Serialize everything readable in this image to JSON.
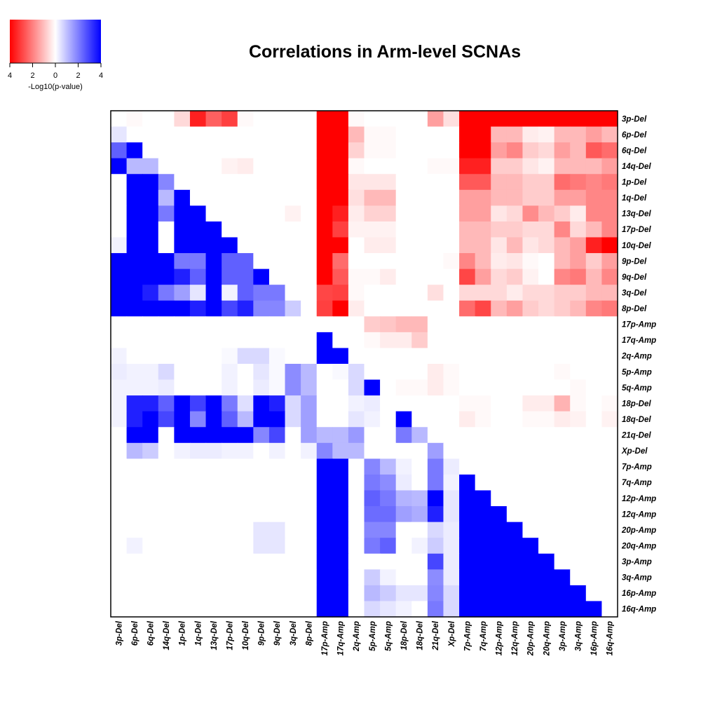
{
  "chart_data": {
    "type": "heatmap",
    "title": "Correlations in Arm-level SCNAs",
    "legend": {
      "label": "-Log10(p-value)",
      "tick_labels": [
        "4",
        "2",
        "0",
        "2",
        "4"
      ],
      "range": [
        -4,
        4
      ],
      "low_color": "#ff0000",
      "mid_color": "#ffffff",
      "high_color": "#0000ff",
      "placement": "top-left"
    },
    "note": "Values in -log10(p) units; negative = red (left side of legend), positive = blue (right side). Upper triangle red, lower triangle blue.",
    "labels": [
      "3p-Del",
      "6p-Del",
      "6q-Del",
      "14q-Del",
      "1p-Del",
      "1q-Del",
      "13q-Del",
      "17p-Del",
      "10q-Del",
      "9p-Del",
      "9q-Del",
      "3q-Del",
      "8p-Del",
      "17p-Amp",
      "17q-Amp",
      "2q-Amp",
      "5p-Amp",
      "5q-Amp",
      "18p-Del",
      "18q-Del",
      "21q-Del",
      "Xp-Del",
      "7p-Amp",
      "7q-Amp",
      "12p-Amp",
      "12q-Amp",
      "20p-Amp",
      "20q-Amp",
      "3p-Amp",
      "3q-Amp",
      "16p-Amp",
      "16q-Amp"
    ],
    "matrix": [
      [
        0,
        -0.1,
        0,
        0,
        -0.6,
        -3.5,
        -2.5,
        -3,
        -0.1,
        0,
        0,
        0,
        0,
        -4,
        -4,
        -0.1,
        0,
        0,
        0,
        0,
        -1.5,
        -0.5,
        -4,
        -4,
        -4,
        -4,
        -4,
        -4,
        -4,
        -4,
        -4,
        -4
      ],
      [
        0.4,
        0,
        0,
        0,
        0,
        0,
        0,
        0,
        0,
        0,
        0,
        0,
        0,
        -4,
        -4,
        -1.1,
        -0.1,
        -0.1,
        0,
        0,
        0,
        0,
        -4,
        -4,
        -1.1,
        -1.1,
        -0.3,
        -0.2,
        -1.1,
        -1.1,
        -1.5,
        -1.1
      ],
      [
        2.5,
        4,
        0,
        0,
        0,
        0,
        0,
        0,
        0,
        0,
        0,
        0,
        0,
        -4,
        -4,
        -0.7,
        -0.1,
        -0.1,
        0,
        0,
        0,
        0,
        -4,
        -4,
        -1.5,
        -1.9,
        -0.8,
        -0.6,
        -1.5,
        -1.1,
        -2.6,
        -2.3
      ],
      [
        4,
        1.1,
        1.1,
        0,
        0,
        0,
        0,
        -0.2,
        -0.3,
        0,
        0,
        0,
        0,
        -4,
        -4,
        -0.1,
        0,
        0,
        0,
        0,
        -0.1,
        -0.1,
        -3.5,
        -3.5,
        -0.8,
        -0.8,
        -0.4,
        -0.2,
        -1.1,
        -1.1,
        -1.1,
        -1.5
      ],
      [
        0,
        4,
        4,
        1.9,
        0,
        0,
        0,
        0,
        0,
        0,
        0,
        0,
        0,
        -4,
        -4,
        -0.4,
        -0.4,
        -0.4,
        0,
        0,
        0,
        0,
        -2.6,
        -2.6,
        -1.1,
        -1.1,
        -0.8,
        -0.8,
        -2.3,
        -2.1,
        -1.9,
        -2.1
      ],
      [
        0,
        4,
        4,
        1.1,
        4,
        0,
        0,
        0,
        0,
        0,
        0,
        0,
        0,
        -4,
        -4,
        -0.5,
        -1.1,
        -1.1,
        0,
        0,
        0,
        0,
        -1.5,
        -1.5,
        -1.1,
        -1.1,
        -0.8,
        -0.8,
        -1.5,
        -1.5,
        -1.9,
        -1.9
      ],
      [
        0,
        4,
        4,
        2.1,
        4,
        4,
        0,
        0,
        0,
        0,
        0,
        -0.2,
        0,
        -4,
        -3.5,
        -0.3,
        -0.7,
        -0.7,
        0,
        0,
        0,
        0,
        -1.5,
        -1.5,
        -0.4,
        -0.6,
        -1.8,
        -1.1,
        -0.8,
        -0.3,
        -1.9,
        -1.9
      ],
      [
        0,
        4,
        4,
        0,
        4,
        4,
        4,
        0,
        0,
        0,
        0,
        0,
        0,
        -4,
        -3,
        -0.2,
        -0.2,
        -0.2,
        0,
        0,
        0,
        0,
        -1.1,
        -1.1,
        -0.8,
        -0.8,
        -0.6,
        -0.6,
        -1.9,
        -0.6,
        -1.1,
        -1.9
      ],
      [
        0.2,
        4,
        4,
        0,
        4,
        4,
        4,
        4,
        0,
        0,
        0,
        0,
        0,
        -4,
        -4,
        0,
        -0.3,
        -0.3,
        0,
        0,
        0,
        0,
        -1.1,
        -1.1,
        -0.4,
        -1.1,
        -0.4,
        -0.6,
        -1.1,
        -1.5,
        -3.5,
        -4
      ],
      [
        4,
        4,
        4,
        4,
        2.1,
        2.1,
        4,
        2.5,
        2.5,
        0,
        0,
        0,
        0,
        -4,
        -2.3,
        0,
        0,
        0,
        0,
        0,
        0,
        -0.1,
        -1.9,
        -1.1,
        -0.3,
        -0.4,
        -0.1,
        0,
        -1.1,
        -1.5,
        -0.8,
        -1.5
      ],
      [
        4,
        4,
        4,
        4,
        3.5,
        2.5,
        4,
        2.5,
        2.5,
        4,
        0,
        0,
        0,
        -4,
        -2.6,
        -0.1,
        -0.1,
        -0.3,
        0,
        0,
        0,
        0,
        -2.9,
        -1.5,
        -0.6,
        -0.8,
        -0.2,
        0,
        -1.9,
        -2.1,
        -1.1,
        -1.9
      ],
      [
        4,
        4,
        3.5,
        2.1,
        1.5,
        0.4,
        4,
        0.2,
        2.5,
        2.1,
        2.1,
        0,
        0,
        -2.9,
        -3,
        -0.1,
        0,
        0,
        0,
        0,
        -0.5,
        0,
        -0.6,
        -0.6,
        -0.6,
        -0.3,
        -0.6,
        -0.6,
        -0.8,
        -0.8,
        -1.1,
        -1.1
      ],
      [
        4,
        4,
        4,
        4,
        4,
        3.5,
        4,
        2.9,
        3.5,
        1.9,
        1.9,
        0.8,
        0,
        -3,
        -4,
        -0.3,
        0,
        0,
        0,
        0,
        0,
        0,
        -2.3,
        -2.9,
        -1.1,
        -1.5,
        -0.8,
        -0.6,
        -0.8,
        -1.1,
        -1.9,
        -2.1
      ],
      [
        0,
        0,
        0,
        0,
        0,
        0,
        0,
        0,
        0,
        0,
        0,
        0,
        0,
        0,
        0,
        0,
        -0.8,
        -0.9,
        -1.1,
        -1.1,
        0,
        0,
        0,
        0,
        0,
        0,
        0,
        0,
        0,
        0,
        0,
        0
      ],
      [
        0,
        0,
        0,
        0,
        0,
        0,
        0,
        0,
        0,
        0,
        0,
        0,
        0,
        4,
        0,
        0,
        -0.1,
        -0.3,
        -0.3,
        -0.8,
        0,
        0,
        0,
        0,
        0,
        0,
        0,
        0,
        0,
        0,
        0,
        0
      ],
      [
        0.2,
        0,
        0,
        0,
        0,
        0,
        0,
        0.1,
        0.6,
        0.6,
        0.1,
        0,
        0,
        4,
        4,
        0,
        0,
        0,
        0,
        0,
        0,
        0,
        0,
        0,
        0,
        0,
        0,
        0,
        0,
        0,
        0,
        0
      ],
      [
        0.3,
        0.2,
        0.2,
        0.6,
        0,
        0,
        0,
        0.2,
        0,
        0.4,
        0.1,
        1.8,
        1.1,
        0,
        0.1,
        0.6,
        0,
        0,
        0,
        0,
        -0.3,
        -0.1,
        0,
        0,
        0,
        0,
        0,
        0,
        -0.1,
        0,
        0,
        0
      ],
      [
        0.2,
        0.2,
        0.2,
        0.3,
        0,
        0,
        0,
        0.2,
        0,
        0.3,
        0.1,
        1.8,
        1.1,
        0,
        0,
        0.6,
        4,
        0,
        -0.1,
        -0.1,
        -0.3,
        -0.1,
        0,
        0,
        0,
        0,
        0,
        0,
        0,
        -0.1,
        0,
        0
      ],
      [
        0.2,
        3.5,
        3.5,
        2.5,
        4,
        3,
        4,
        2.1,
        0.5,
        4,
        3.5,
        0.6,
        1.5,
        0,
        0,
        0.2,
        0.3,
        0,
        0,
        0,
        0,
        0,
        -0.1,
        -0.1,
        0,
        0,
        -0.3,
        -0.3,
        -1.2,
        -0.1,
        0,
        -0.1
      ],
      [
        0.2,
        3.5,
        4,
        2.9,
        4,
        1.9,
        4,
        2.5,
        1.1,
        4,
        4,
        0.6,
        1.5,
        0,
        0,
        0.4,
        0.2,
        0,
        4,
        0,
        0,
        0,
        -0.3,
        -0.1,
        0,
        0,
        -0.1,
        -0.1,
        -0.3,
        -0.2,
        0,
        -0.2
      ],
      [
        0,
        4,
        4,
        0,
        4,
        4,
        4,
        4,
        4,
        1.9,
        2.9,
        0,
        1.5,
        1.1,
        1.1,
        1.6,
        0,
        0,
        2.1,
        1.1,
        0,
        0,
        0,
        0,
        0,
        0,
        0,
        0,
        0,
        0,
        0,
        0
      ],
      [
        0,
        1.1,
        0.8,
        0,
        0.2,
        0.3,
        0.3,
        0.2,
        0.2,
        0,
        0.2,
        0,
        0.2,
        1.9,
        1.1,
        1.1,
        0,
        0,
        0,
        0,
        1.5,
        0,
        0,
        0,
        0,
        0,
        0,
        0,
        0,
        0,
        0,
        0
      ],
      [
        0,
        0,
        0,
        0,
        0,
        0,
        0,
        0,
        0,
        0,
        0,
        0,
        0,
        4,
        4,
        0,
        1.9,
        1.1,
        0.2,
        0,
        2.1,
        0.3,
        0,
        0,
        0,
        0,
        0,
        0,
        0,
        0,
        0,
        0
      ],
      [
        0,
        0,
        0,
        0,
        0,
        0,
        0,
        0,
        0,
        0,
        0,
        0,
        0,
        4,
        4,
        0,
        2.1,
        1.8,
        0.3,
        0,
        2.1,
        0.2,
        4,
        0,
        0,
        0,
        0,
        0,
        0,
        0,
        0,
        0
      ],
      [
        0,
        0,
        0,
        0,
        0,
        0,
        0,
        0,
        0,
        0,
        0,
        0,
        0,
        4,
        4,
        0,
        2.5,
        2.1,
        1.2,
        1.1,
        4,
        0.4,
        4,
        4,
        0,
        0,
        0,
        0,
        0,
        0,
        0,
        0
      ],
      [
        0,
        0,
        0,
        0,
        0,
        0,
        0,
        0,
        0,
        0,
        0,
        0,
        0,
        4,
        4,
        0,
        2.3,
        2.3,
        1.5,
        1.3,
        3.5,
        0.4,
        4,
        4,
        4,
        0,
        0,
        0,
        0,
        0,
        0,
        0
      ],
      [
        0,
        0,
        0,
        0,
        0,
        0,
        0,
        0,
        0,
        0.4,
        0.4,
        0,
        0,
        4,
        4,
        0,
        1.9,
        1.9,
        0,
        0,
        0.6,
        0.3,
        4,
        4,
        4,
        4,
        0,
        0,
        0,
        0,
        0,
        0
      ],
      [
        0,
        0.2,
        0,
        0,
        0,
        0,
        0,
        0,
        0,
        0.4,
        0.4,
        0,
        0,
        4,
        4,
        0,
        2.1,
        2.5,
        0,
        0.2,
        0.8,
        0.3,
        4,
        4,
        4,
        4,
        4,
        0,
        0,
        0,
        0,
        0
      ],
      [
        0,
        0,
        0,
        0,
        0,
        0,
        0,
        0,
        0,
        0,
        0,
        0,
        0,
        4,
        4,
        0,
        0,
        0,
        0,
        0,
        2.9,
        0.3,
        4,
        4,
        4,
        4,
        4,
        4,
        0,
        0,
        0,
        0
      ],
      [
        0,
        0,
        0,
        0,
        0,
        0,
        0,
        0,
        0,
        0,
        0,
        0,
        0,
        4,
        4,
        0,
        0.8,
        0.2,
        0,
        0,
        1.8,
        0.3,
        4,
        4,
        4,
        4,
        4,
        4,
        4,
        0,
        0,
        0
      ],
      [
        0,
        0,
        0,
        0,
        0,
        0,
        0,
        0,
        0,
        0,
        0,
        0,
        0,
        4,
        4,
        0,
        1.1,
        0.8,
        0.4,
        0.4,
        1.9,
        0.6,
        4,
        4,
        4,
        4,
        4,
        4,
        4,
        4,
        0,
        0
      ],
      [
        0,
        0,
        0,
        0,
        0,
        0,
        0,
        0,
        0,
        0,
        0,
        0,
        0,
        4,
        4,
        0,
        0.6,
        0.4,
        0.2,
        0,
        2.1,
        0.6,
        4,
        4,
        4,
        4,
        4,
        4,
        4,
        4,
        4,
        0
      ]
    ]
  }
}
